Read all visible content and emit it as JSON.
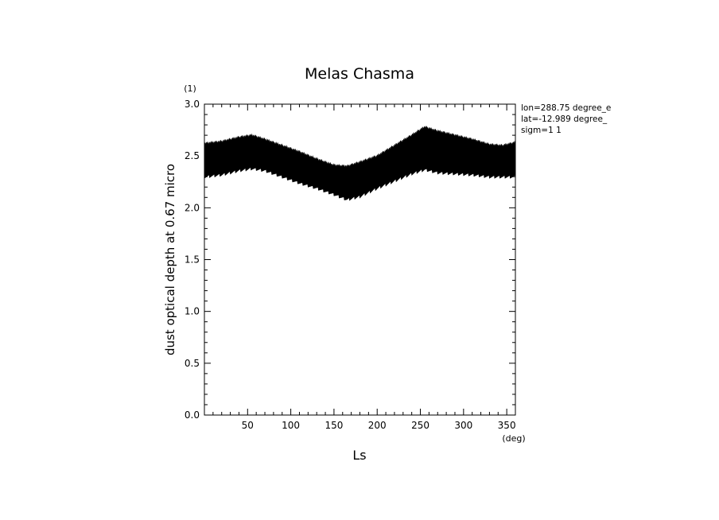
{
  "chart_data": {
    "type": "area",
    "title": "Melas Chasma",
    "xlabel": "Ls",
    "ylabel": "dust optical depth at 0.67 micro",
    "x_units": "(deg)",
    "y_units": "(1)",
    "xlim": [
      0,
      360
    ],
    "ylim": [
      0.0,
      3.0
    ],
    "x_ticks": [
      50,
      100,
      150,
      200,
      250,
      300,
      350
    ],
    "x_tick_labels": [
      "50",
      "100",
      "150",
      "200",
      "250",
      "300",
      "350"
    ],
    "y_ticks": [
      0.0,
      0.5,
      1.0,
      1.5,
      2.0,
      2.5,
      3.0
    ],
    "y_tick_labels": [
      "0.0",
      "0.5",
      "1.0",
      "1.5",
      "2.0",
      "2.5",
      "3.0"
    ],
    "grid": false,
    "legend": "none",
    "series_color": "#000000",
    "series": [
      {
        "x": [
          0,
          20,
          40,
          55,
          70,
          90,
          110,
          130,
          150,
          165,
          180,
          200,
          220,
          240,
          255,
          270,
          290,
          310,
          330,
          345,
          360
        ],
        "upper": [
          2.62,
          2.64,
          2.68,
          2.7,
          2.66,
          2.6,
          2.54,
          2.47,
          2.41,
          2.4,
          2.44,
          2.5,
          2.6,
          2.7,
          2.78,
          2.74,
          2.7,
          2.66,
          2.61,
          2.6,
          2.63
        ],
        "lower": [
          2.3,
          2.32,
          2.36,
          2.38,
          2.36,
          2.3,
          2.24,
          2.19,
          2.13,
          2.08,
          2.11,
          2.19,
          2.26,
          2.33,
          2.37,
          2.34,
          2.33,
          2.32,
          2.3,
          2.3,
          2.3
        ]
      }
    ]
  },
  "info": {
    "lon": "lon=288.75 degree_e",
    "lat": "lat=-12.989 degree_",
    "sigm": "sigm=1 1"
  }
}
